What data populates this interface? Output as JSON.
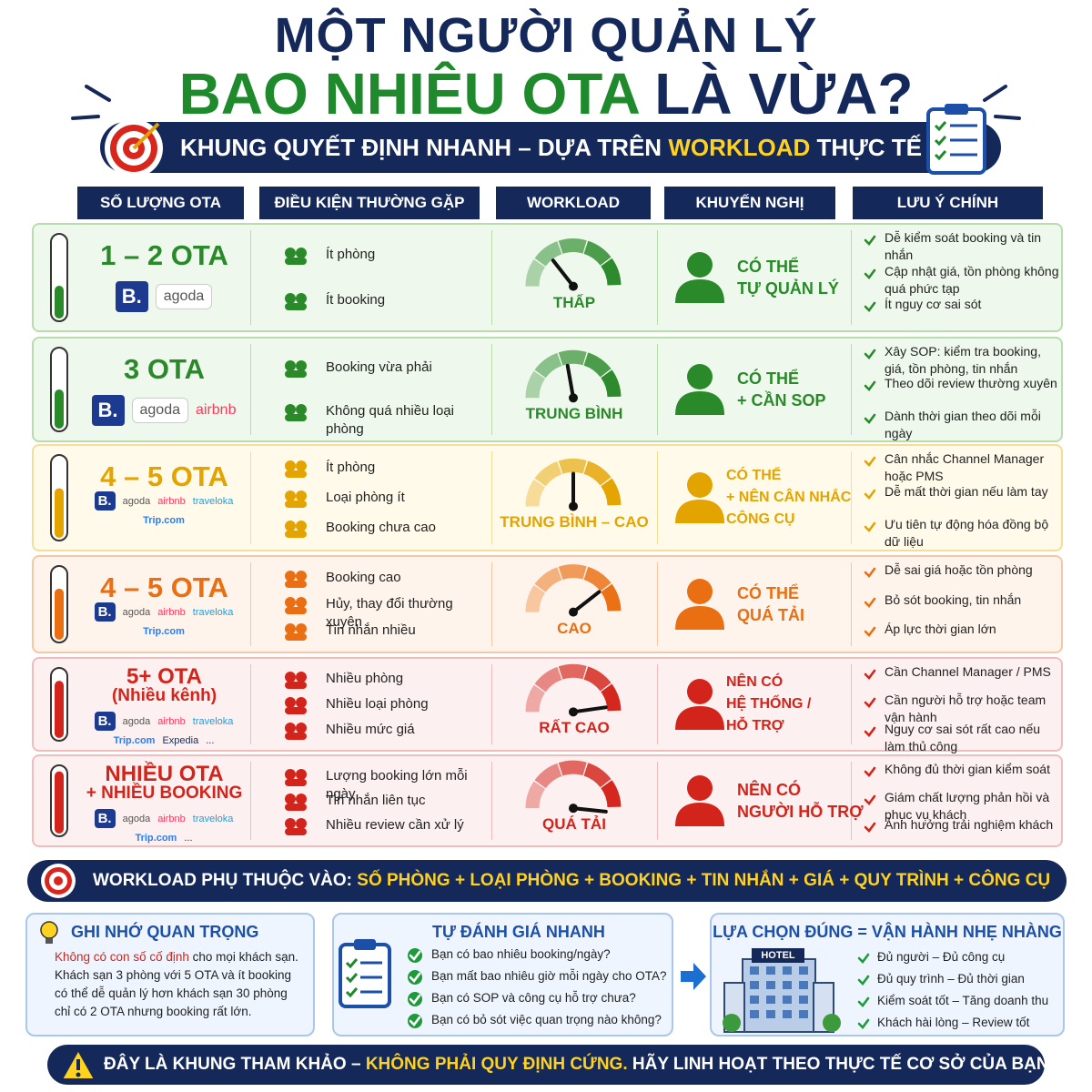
{
  "header": {
    "title_line1": "MỘT NGƯỜI QUẢN LÝ",
    "title_line2_highlight": "BAO NHIÊU OTA",
    "title_line2_rest": "LÀ VỪA?",
    "subtitle_start": "KHUNG QUYẾT ĐỊNH NHANH – DỰA TRÊN",
    "subtitle_highlight": "WORKLOAD",
    "subtitle_end": "THỰC TẾ"
  },
  "table": {
    "headers": [
      "SỐ LƯỢNG OTA",
      "ĐIỀU KIỆN THƯỜNG GẶP",
      "WORKLOAD",
      "KHUYẾN NGHỊ",
      "LƯU Ý CHÍNH"
    ],
    "rows": [
      {
        "ota": [
          "1 – 2 OTA"
        ],
        "logos": [
          "B.",
          "agoda"
        ],
        "conditions": [
          "Ít phòng",
          "Ít booking"
        ],
        "workload": "THẤP",
        "recommendation": [
          "CÓ THỂ",
          "TỰ QUẢN LÝ"
        ],
        "notes": [
          "Dễ kiểm soát booking và tin nhắn",
          "Cập nhật giá, tồn phòng không quá phức tạp",
          "Ít nguy cơ sai sót"
        ]
      },
      {
        "ota": [
          "3 OTA"
        ],
        "logos": [
          "B.",
          "agoda",
          "airbnb"
        ],
        "conditions": [
          "Booking vừa phải",
          "Không quá nhiều loại phòng"
        ],
        "workload": "TRUNG BÌNH",
        "recommendation": [
          "CÓ THỂ",
          "+ CẦN SOP"
        ],
        "notes": [
          "Xây SOP: kiểm tra booking, giá, tồn phòng, tin nhắn",
          "Theo dõi review thường xuyên",
          "Dành thời gian theo dõi mỗi ngày"
        ]
      },
      {
        "ota": [
          "4 – 5 OTA"
        ],
        "logos": [
          "B.",
          "agoda",
          "airbnb",
          "traveloka",
          "Trip.com"
        ],
        "conditions": [
          "Ít phòng",
          "Loại phòng ít",
          "Booking chưa cao"
        ],
        "workload": "TRUNG BÌNH – CAO",
        "recommendation": [
          "CÓ THỂ",
          "+ NÊN CÂN NHẮC",
          "CÔNG CỤ"
        ],
        "notes": [
          "Cân nhắc Channel Manager hoặc PMS",
          "Dễ mất thời gian nếu làm tay",
          "Ưu tiên tự động hóa đồng bộ dữ liệu"
        ]
      },
      {
        "ota": [
          "4 – 5 OTA"
        ],
        "logos": [
          "B.",
          "agoda",
          "airbnb",
          "traveloka",
          "Trip.com"
        ],
        "conditions": [
          "Booking cao",
          "Hủy, thay đổi thường xuyên",
          "Tin nhắn nhiều"
        ],
        "workload": "CAO",
        "recommendation": [
          "CÓ THỂ",
          "QUÁ TẢI"
        ],
        "notes": [
          "Dễ sai giá hoặc tồn phòng",
          "Bỏ sót booking, tin nhắn",
          "Áp lực thời gian lớn"
        ]
      },
      {
        "ota": [
          "5+ OTA",
          "(Nhiều kênh)"
        ],
        "logos": [
          "B.",
          "agoda",
          "airbnb",
          "traveloka",
          "Trip.com",
          "Expedia",
          "..."
        ],
        "conditions": [
          "Nhiều phòng",
          "Nhiều loại phòng",
          "Nhiều mức giá"
        ],
        "workload": "RẤT CAO",
        "recommendation": [
          "NÊN CÓ",
          "HỆ THỐNG /",
          "HỖ TRỢ"
        ],
        "notes": [
          "Cần Channel Manager / PMS",
          "Cần người hỗ trợ hoặc team vận hành",
          "Nguy cơ sai sót rất cao nếu làm thủ công"
        ]
      },
      {
        "ota": [
          "NHIỀU OTA",
          "+ NHIỀU BOOKING"
        ],
        "logos": [
          "B.",
          "agoda",
          "airbnb",
          "traveloka",
          "Trip.com",
          "..."
        ],
        "conditions": [
          "Lượng booking lớn mỗi ngày",
          "Tin nhắn liên tục",
          "Nhiều review cần xử lý"
        ],
        "workload": "QUÁ TẢI",
        "recommendation": [
          "NÊN CÓ",
          "NGƯỜI HỖ TRỢ"
        ],
        "notes": [
          "Không đủ thời gian kiểm soát",
          "Giám chất lượng phản hồi và phục vụ khách",
          "Ảnh hưởng trải nghiệm khách"
        ]
      }
    ]
  },
  "factors": {
    "label": "WORKLOAD PHỤ THUỘC VÀO:",
    "items": "SỐ PHÒNG + LOẠI PHÒNG + BOOKING + TIN NHẮN + GIÁ + QUY TRÌNH + CÔNG CỤ"
  },
  "remember": {
    "title": "GHI NHỚ QUAN TRỌNG",
    "highlight": "Không có con số cố định",
    "text": "cho mọi khách sạn. Khách sạn 3 phòng với 5 OTA và ít booking có thể dễ quản lý hơn khách sạn 30 phòng chỉ có 2 OTA nhưng booking rất lớn."
  },
  "self_check": {
    "title": "TỰ ĐÁNH GIÁ NHANH",
    "items": [
      "Bạn có bao nhiêu booking/ngày?",
      "Bạn mất bao nhiêu giờ mỗi ngày cho OTA?",
      "Bạn có SOP và công cụ hỗ trợ chưa?",
      "Bạn có bỏ sót việc quan trọng nào không?"
    ]
  },
  "right_choice": {
    "title": "LỰA CHỌN ĐÚNG = VẬN HÀNH NHẸ NHÀNG",
    "sign": "HOTEL",
    "items": [
      "Đủ người – Đủ công cụ",
      "Đủ quy trình – Đủ thời gian",
      "Kiểm soát tốt – Tăng doanh thu",
      "Khách hài lòng – Review tốt"
    ]
  },
  "footer": {
    "start": "ĐÂY LÀ KHUNG THAM KHẢO –",
    "highlight": "KHÔNG PHẢI QUY ĐỊNH CỨNG.",
    "end": "HÃY LINH HOẠT THEO THỰC TẾ CƠ SỞ CỦA BẠN!"
  }
}
